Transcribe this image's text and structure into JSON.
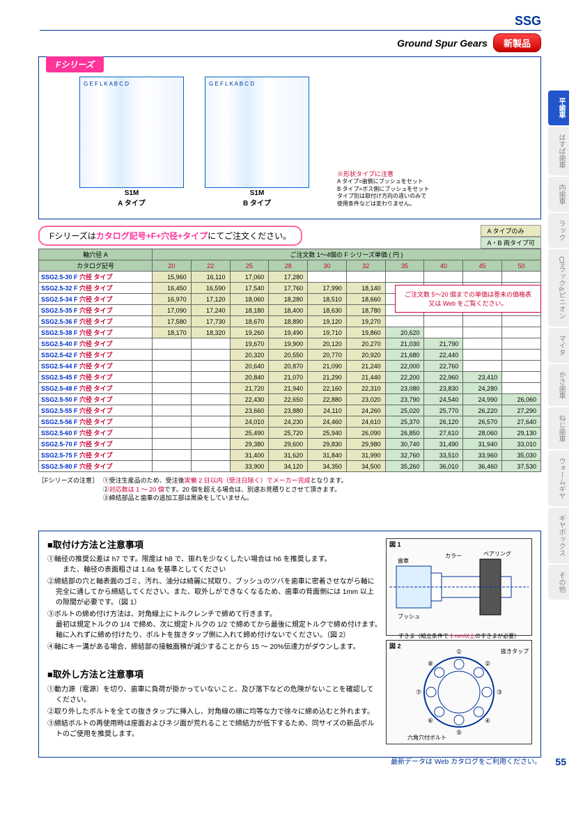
{
  "header": {
    "ssg": "SSG",
    "subtitle": "Ground Spur Gears",
    "new_product": "新製品"
  },
  "side_tabs": [
    "平歯車",
    "はすば歯車",
    "内歯車",
    "ラック",
    "CPラック&ピニオン",
    "マイタ",
    "かさ歯車",
    "ねじ歯車",
    "ウォームギヤ",
    "ギヤボックス",
    "その他"
  ],
  "diagram": {
    "series": "Fシリーズ",
    "type_a": "S1M\nA タイプ",
    "type_b": "S1M\nB タイプ",
    "labels_a": "G E F L K A B C D",
    "labels_b": "G E F L K A B C D",
    "shape_note_title": "※形状タイプに注意",
    "shape_note_body": "A タイプ=歯側にブッシュをセット\nB タイプ=ボス側にブッシュをセット\nタイプ別は取付け方向の違いのみで\n使用条件などは変わりません。"
  },
  "order": {
    "prefix": "Fシリーズは",
    "highlight": "カタログ記号+F+穴径+タイプ",
    "suffix": "にてご注文ください。",
    "badge_a": "A タイプのみ",
    "badge_ab": "A・B 両タイプ可"
  },
  "table": {
    "axis_header": "軸穴径 A",
    "qty_header": "ご注文数 1～4個の F シリーズ単価 ( 円 )",
    "catalog_header": "カタログ記号",
    "columns": [
      "20",
      "22",
      "25",
      "28",
      "30",
      "32",
      "35",
      "40",
      "45",
      "50"
    ],
    "note_box": "ご注文数 5～20 個までの単価は巻末の価格表\n又は Web をご覧ください。",
    "rows": [
      {
        "cat": "SSG2.5-30 F",
        "vals": [
          "15,960",
          "16,110",
          "17,060",
          "17,280",
          "",
          "",
          "",
          "",
          "",
          ""
        ],
        "ab_from": 99
      },
      {
        "cat": "SSG2.5-32 F",
        "vals": [
          "16,450",
          "16,590",
          "17,540",
          "17,760",
          "17,990",
          "18,140",
          "",
          "",
          "",
          ""
        ],
        "ab_from": 99
      },
      {
        "cat": "SSG2.5-34 F",
        "vals": [
          "16,970",
          "17,120",
          "18,060",
          "18,280",
          "18,510",
          "18,660",
          "",
          "",
          "",
          ""
        ],
        "ab_from": 99
      },
      {
        "cat": "SSG2.5-35 F",
        "vals": [
          "17,090",
          "17,240",
          "18,180",
          "18,400",
          "18,630",
          "18,780",
          "",
          "",
          "",
          ""
        ],
        "ab_from": 99
      },
      {
        "cat": "SSG2.5-36 F",
        "vals": [
          "17,580",
          "17,730",
          "18,670",
          "18,890",
          "19,120",
          "19,270",
          "",
          "",
          "",
          ""
        ],
        "ab_from": 99
      },
      {
        "cat": "SSG2.5-38 F",
        "vals": [
          "18,170",
          "18,320",
          "19,260",
          "19,490",
          "19,710",
          "19,860",
          "20,620",
          "",
          "",
          ""
        ],
        "ab_from": 6
      },
      {
        "cat": "SSG2.5-40 F",
        "vals": [
          "",
          "",
          "19,670",
          "19,900",
          "20,120",
          "20,270",
          "21,030",
          "21,790",
          "",
          ""
        ],
        "ab_from": 6
      },
      {
        "cat": "SSG2.5-42 F",
        "vals": [
          "",
          "",
          "20,320",
          "20,550",
          "20,770",
          "20,920",
          "21,680",
          "22,440",
          "",
          ""
        ],
        "ab_from": 6
      },
      {
        "cat": "SSG2.5-44 F",
        "vals": [
          "",
          "",
          "20,640",
          "20,870",
          "21,090",
          "21,240",
          "22,000",
          "22,760",
          "",
          ""
        ],
        "ab_from": 6
      },
      {
        "cat": "SSG2.5-45 F",
        "vals": [
          "",
          "",
          "20,840",
          "21,070",
          "21,290",
          "21,440",
          "22,200",
          "22,960",
          "23,410",
          ""
        ],
        "ab_from": 6
      },
      {
        "cat": "SSG2.5-48 F",
        "vals": [
          "",
          "",
          "21,720",
          "21,940",
          "22,160",
          "22,310",
          "23,080",
          "23,830",
          "24,280",
          ""
        ],
        "ab_from": 6
      },
      {
        "cat": "SSG2.5-50 F",
        "vals": [
          "",
          "",
          "22,430",
          "22,650",
          "22,880",
          "23,020",
          "23,790",
          "24,540",
          "24,990",
          "26,060"
        ],
        "ab_from": 6
      },
      {
        "cat": "SSG2.5-55 F",
        "vals": [
          "",
          "",
          "23,660",
          "23,880",
          "24,110",
          "24,260",
          "25,020",
          "25,770",
          "26,220",
          "27,290"
        ],
        "ab_from": 6
      },
      {
        "cat": "SSG2.5-56 F",
        "vals": [
          "",
          "",
          "24,010",
          "24,230",
          "24,460",
          "24,610",
          "25,370",
          "26,120",
          "26,570",
          "27,640"
        ],
        "ab_from": 6
      },
      {
        "cat": "SSG2.5-60 F",
        "vals": [
          "",
          "",
          "25,490",
          "25,720",
          "25,940",
          "26,090",
          "26,850",
          "27,610",
          "28,060",
          "29,130"
        ],
        "ab_from": 6
      },
      {
        "cat": "SSG2.5-70 F",
        "vals": [
          "",
          "",
          "29,380",
          "29,600",
          "29,830",
          "29,980",
          "30,740",
          "31,490",
          "31,940",
          "33,010"
        ],
        "ab_from": 6
      },
      {
        "cat": "SSG2.5-75 F",
        "vals": [
          "",
          "",
          "31,400",
          "31,620",
          "31,840",
          "31,990",
          "32,760",
          "33,510",
          "33,960",
          "35,030"
        ],
        "ab_from": 6
      },
      {
        "cat": "SSG2.5-80 F",
        "vals": [
          "",
          "",
          "33,900",
          "34,120",
          "34,350",
          "34,500",
          "35,260",
          "36,010",
          "36,460",
          "37,530"
        ],
        "ab_from": 6
      }
    ]
  },
  "notes": {
    "label": "［Fシリーズの注意］",
    "items": [
      "①受注生産品のため、受注後<span class='red'>実働 2 日以内（受注日除く）でメーカー完成</span>となります。",
      "②<span class='red'>対応数は 1 ～ 20 個</span>です。20 個を超える場合は、別途お見積りとさせて頂きます。",
      "③締結部品と歯車の追加工部は黒染をしていません。"
    ]
  },
  "install": {
    "title": "■取付け方法と注意事項",
    "items": [
      "①軸径の推奨公差は h7 です。限度は h8 で、振れを少なくしたい場合は h6 を推奨します。\n　また、軸径の表面粗さは 1.6a を基準としてください",
      "②締結部の穴と軸表面のゴミ、汚れ、油分は綺麗に拭取り、ブッシュのツバを歯車に密着させながら軸に完全に通してから締結してください。また、取外しができなくなるため、歯車の背面側には 1mm 以上の隙間が必要です。（図 1）",
      "③ボルトの締め付け方法は、対角線上にトルクレンチで締めて行きます。\n最初は規定トルクの 1/4 で締め、次に規定トルクの 1/2 で締めてから最後に規定トルクで締め付けます。　軸に入れずに締め付けたり、ボルトを抜きタップ側に入れて締め付けないでください。（図 2）",
      "④軸にキー溝がある場合、締結部の接触面積が減少することから 15 ～ 20%伝達力がダウンします。"
    ],
    "fig1_label": "図 1",
    "fig1_parts": [
      "歯車",
      "カラー",
      "ベアリング",
      "ブッシュ",
      "G"
    ],
    "fig1_caption_prefix": "すきま（組立条件で ",
    "fig1_caption_red": "1 mm以上",
    "fig1_caption_suffix": "のすきまが必要）",
    "fig2_label": "図 2",
    "fig2_parts": [
      "抜きタップ",
      "六角穴付ボルト"
    ],
    "fig2_nums": [
      "①",
      "②",
      "③",
      "④",
      "⑤",
      "⑥",
      "⑦",
      "⑧"
    ]
  },
  "remove": {
    "title": "■取外し方法と注意事項",
    "items": [
      "①動力源（電源）を切り、歯車に負荷が掛かっていないこと、及び落下などの危険がないことを確認してください。",
      "②取り外したボルトを全ての抜きタップに挿入し、対角線の順に均等な力で徐々に締め込むと外れます。",
      "③締結ボルトの再使用時は座面およびネジ面が荒れることで締結力が低下するため、同サイズの新品ボルトのご使用を推奨します。"
    ]
  },
  "footer": {
    "text": "最新データは Web カタログをご利用ください。",
    "page": "55"
  },
  "catalog_suffix": {
    "bore": " 穴径",
    "type": " タイプ"
  }
}
